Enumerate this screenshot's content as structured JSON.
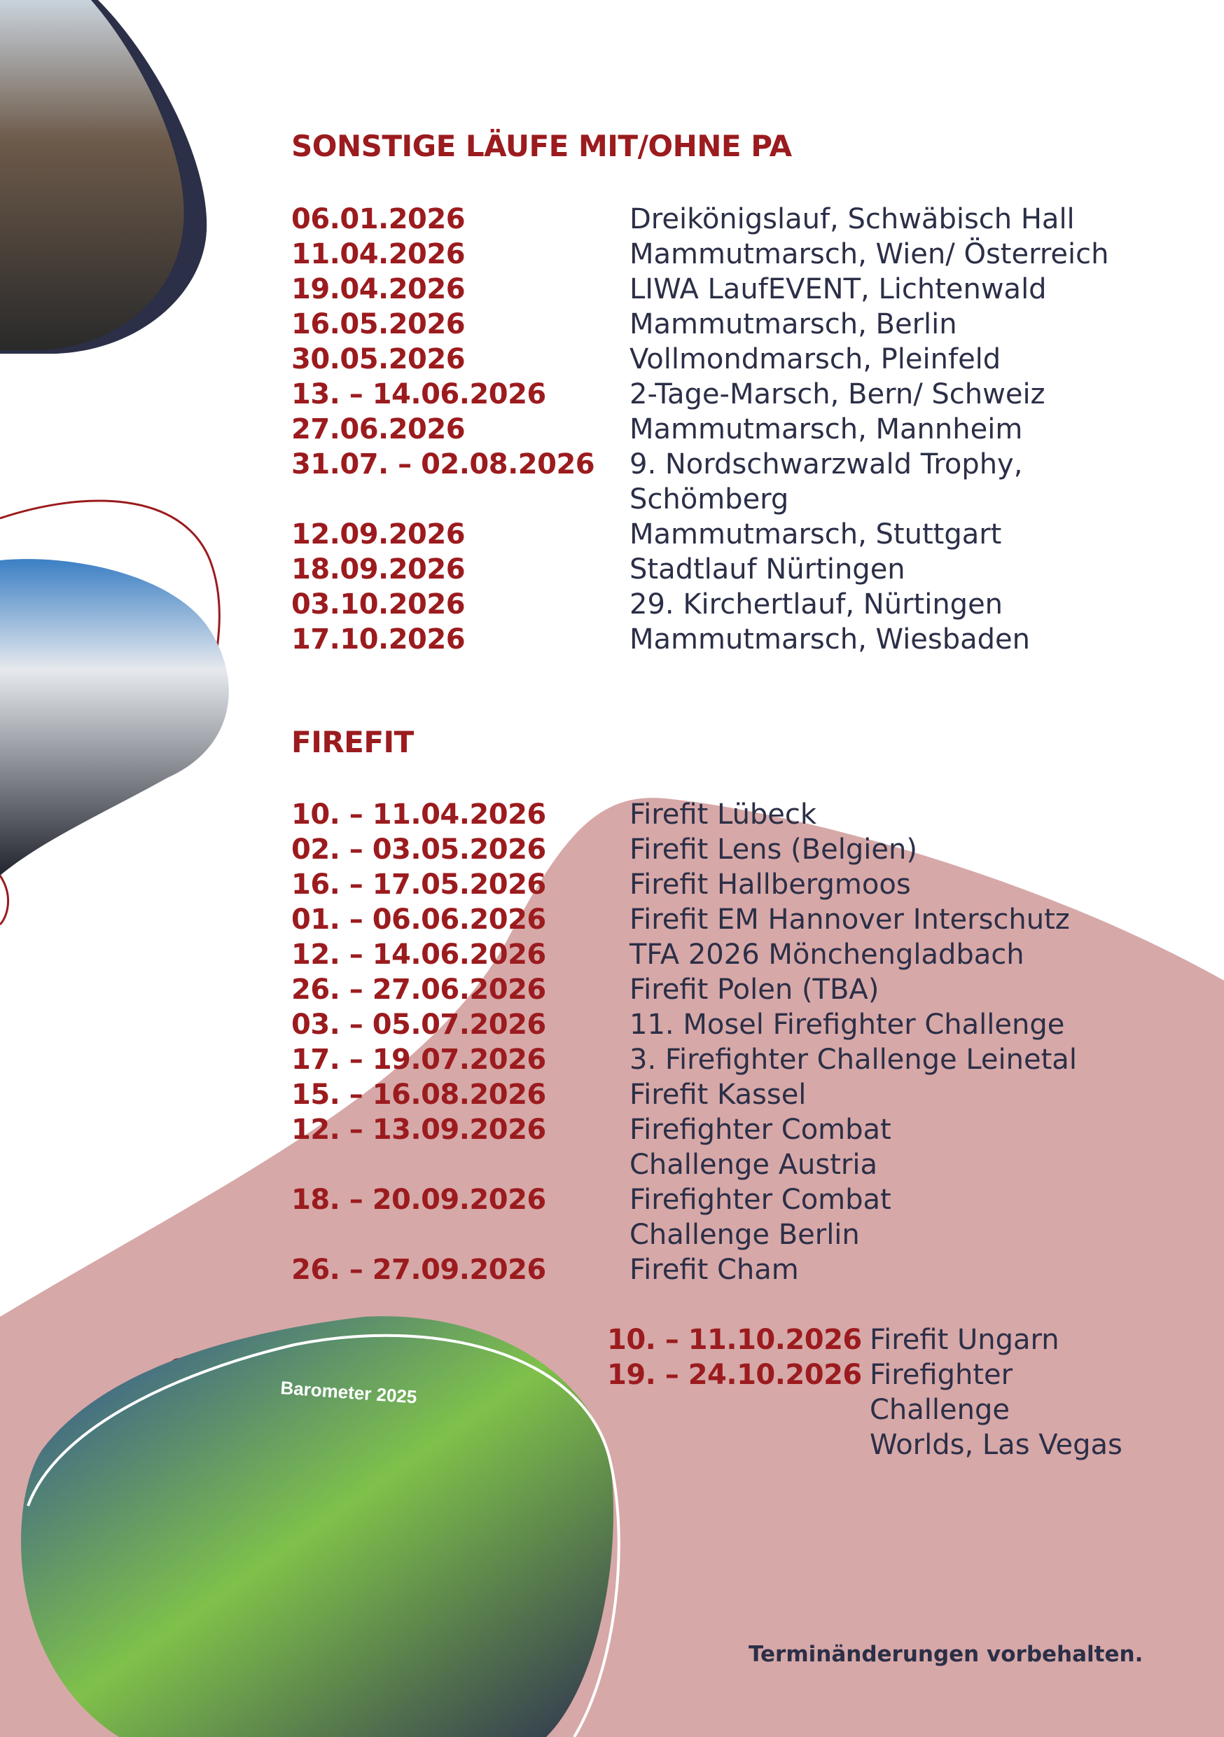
{
  "colors": {
    "accent": "#9b1b1e",
    "text": "#2b2f47",
    "blob": "#d7a8a8"
  },
  "photos": [
    {
      "name": "photo-firefighters-award"
    },
    {
      "name": "photo-firefighters-group"
    },
    {
      "name": "photo-team-barometer",
      "sign_text": "Barometer 2025"
    }
  ],
  "sections": [
    {
      "title": "SONSTIGE LÄUFE MIT/OHNE PA",
      "items": [
        {
          "date": "06.01.2026",
          "event": "Dreikönigslauf, Schwäbisch Hall"
        },
        {
          "date": "11.04.2026",
          "event": "Mammutmarsch, Wien/ Österreich"
        },
        {
          "date": "19.04.2026",
          "event": "LIWA LaufEVENT, Lichtenwald"
        },
        {
          "date": "16.05.2026",
          "event": "Mammutmarsch, Berlin"
        },
        {
          "date": "30.05.2026",
          "event": "Vollmondmarsch, Pleinfeld"
        },
        {
          "date": "13. – 14.06.2026",
          "event": "2-Tage-Marsch, Bern/ Schweiz"
        },
        {
          "date": "27.06.2026",
          "event": "Mammutmarsch, Mannheim"
        },
        {
          "date": "31.07. – 02.08.2026",
          "event": "9. Nordschwarzwald Trophy,\nSchömberg"
        },
        {
          "date": "12.09.2026",
          "event": "Mammutmarsch, Stuttgart"
        },
        {
          "date": "18.09.2026",
          "event": "Stadtlauf Nürtingen"
        },
        {
          "date": "03.10.2026",
          "event": "29. Kirchertlauf, Nürtingen"
        },
        {
          "date": "17.10.2026",
          "event": "Mammutmarsch, Wiesbaden"
        }
      ]
    },
    {
      "title": "FIREFIT",
      "items": [
        {
          "date": "10. – 11.04.2026",
          "event": "Firefit Lübeck"
        },
        {
          "date": "02. – 03.05.2026",
          "event": "Firefit Lens (Belgien)"
        },
        {
          "date": "16. – 17.05.2026",
          "event": "Firefit Hallbergmoos"
        },
        {
          "date": "01. – 06.06.2026",
          "event": "Firefit EM Hannover Interschutz"
        },
        {
          "date": "12. – 14.06.2026",
          "event": "TFA 2026 Mönchengladbach"
        },
        {
          "date": "26. – 27.06.2026",
          "event": "Firefit Polen (TBA)"
        },
        {
          "date": "03. – 05.07.2026",
          "event": "11. Mosel Firefighter Challenge"
        },
        {
          "date": "17. – 19.07.2026",
          "event": "3. Firefighter Challenge Leinetal"
        },
        {
          "date": "15. – 16.08.2026",
          "event": "Firefit Kassel"
        },
        {
          "date": "12. – 13.09.2026",
          "event": "Firefighter Combat\nChallenge Austria"
        },
        {
          "date": "18. – 20.09.2026",
          "event": "Firefighter Combat\nChallenge Berlin"
        },
        {
          "date": "26. – 27.09.2026",
          "event": "Firefit Cham"
        }
      ],
      "continued": [
        {
          "date": "10. – 11.10.2026",
          "event": "Firefit Ungarn"
        },
        {
          "date": "19. – 24.10.2026",
          "event": "Firefighter\nChallenge\nWorlds, Las Vegas"
        }
      ]
    }
  ],
  "note": "Terminänderungen vorbehalten."
}
